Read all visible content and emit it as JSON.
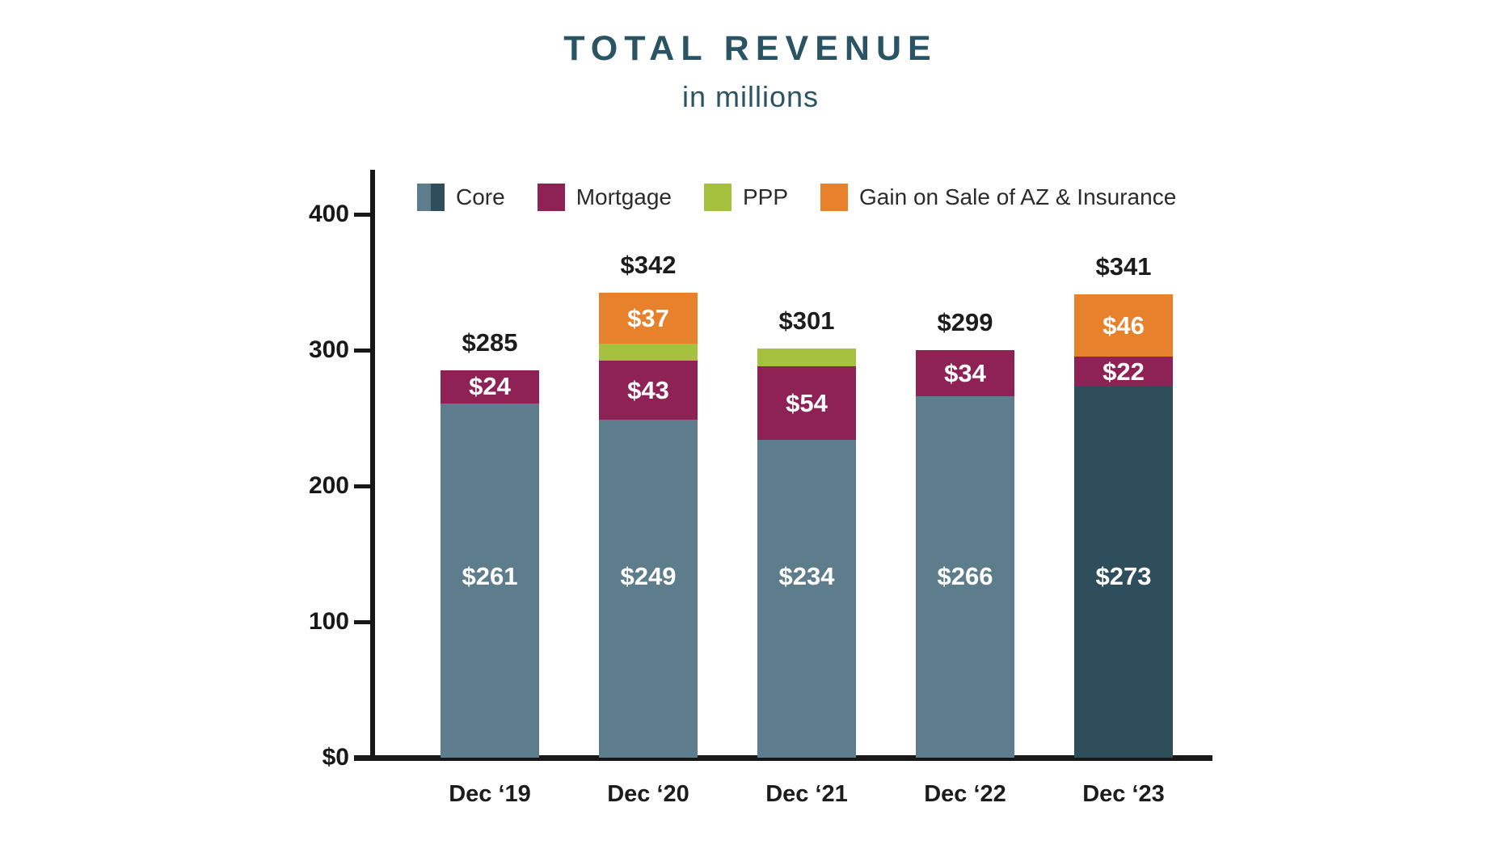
{
  "header": {
    "title": "TOTAL REVENUE",
    "subtitle": "in millions"
  },
  "colors": {
    "title_teal": "#2a5363",
    "core_light": "#5e7d8c",
    "core_dark": "#2e4e5c",
    "mortgage": "#8e2255",
    "ppp": "#a6c13d",
    "gain": "#e8812c",
    "axis": "#181818",
    "label_dark": "#1c1c1c",
    "label_light": "#ffffff"
  },
  "legend": {
    "items": [
      {
        "label": "Core",
        "swatch_colors": [
          "#5e7d8c",
          "#2e4e5c"
        ]
      },
      {
        "label": "Mortgage",
        "swatch_colors": [
          "#8e2255"
        ]
      },
      {
        "label": "PPP",
        "swatch_colors": [
          "#a6c13d"
        ]
      },
      {
        "label": "Gain on Sale of AZ & Insurance",
        "swatch_colors": [
          "#e8812c"
        ]
      }
    ]
  },
  "y_axis": {
    "ticks": [
      {
        "label": "400",
        "value": 400
      },
      {
        "label": "300",
        "value": 300
      },
      {
        "label": "200",
        "value": 200
      },
      {
        "label": "100",
        "value": 100
      },
      {
        "label": "$0",
        "value": 0
      }
    ]
  },
  "chart_data": {
    "type": "bar",
    "stacked": true,
    "title": "TOTAL REVENUE",
    "subtitle": "in millions",
    "grid": false,
    "legend_position": "top",
    "ylim": [
      0,
      430
    ],
    "categories": [
      "Dec ‘19",
      "Dec ‘20",
      "Dec ‘21",
      "Dec ‘22",
      "Dec ‘23"
    ],
    "series": [
      {
        "name": "Core",
        "values": [
          261,
          249,
          234,
          266,
          273
        ]
      },
      {
        "name": "Mortgage",
        "values": [
          24,
          43,
          54,
          34,
          22
        ]
      },
      {
        "name": "PPP",
        "values": [
          0,
          13,
          13,
          0,
          0
        ]
      },
      {
        "name": "Gain on Sale of AZ & Insurance",
        "values": [
          0,
          37,
          0,
          0,
          46
        ]
      }
    ],
    "totals": [
      285,
      342,
      301,
      299,
      341
    ],
    "bars": [
      {
        "category": "Dec ‘19",
        "total_label": "$285",
        "segments": [
          {
            "series": "Core",
            "value": 261,
            "label": "$261",
            "color": "#5e7d8c"
          },
          {
            "series": "Mortgage",
            "value": 24,
            "label": "$24",
            "color": "#8e2255"
          }
        ]
      },
      {
        "category": "Dec ‘20",
        "total_label": "$342",
        "segments": [
          {
            "series": "Core",
            "value": 249,
            "label": "$249",
            "color": "#5e7d8c"
          },
          {
            "series": "Mortgage",
            "value": 43,
            "label": "$43",
            "color": "#8e2255"
          },
          {
            "series": "PPP",
            "value": 13,
            "label": "",
            "color": "#a6c13d"
          },
          {
            "series": "Gain on Sale of AZ & Insurance",
            "value": 37,
            "label": "$37",
            "color": "#e8812c"
          }
        ]
      },
      {
        "category": "Dec ‘21",
        "total_label": "$301",
        "segments": [
          {
            "series": "Core",
            "value": 234,
            "label": "$234",
            "color": "#5e7d8c"
          },
          {
            "series": "Mortgage",
            "value": 54,
            "label": "$54",
            "color": "#8e2255"
          },
          {
            "series": "PPP",
            "value": 13,
            "label": "",
            "color": "#a6c13d"
          }
        ]
      },
      {
        "category": "Dec ‘22",
        "total_label": "$299",
        "segments": [
          {
            "series": "Core",
            "value": 266,
            "label": "$266",
            "color": "#5e7d8c"
          },
          {
            "series": "Mortgage",
            "value": 34,
            "label": "$34",
            "color": "#8e2255"
          }
        ]
      },
      {
        "category": "Dec ‘23",
        "total_label": "$341",
        "segments": [
          {
            "series": "Core",
            "value": 273,
            "label": "$273",
            "color": "#2e4e5c"
          },
          {
            "series": "Mortgage",
            "value": 22,
            "label": "$22",
            "color": "#8e2255"
          },
          {
            "series": "Gain on Sale of AZ & Insurance",
            "value": 46,
            "label": "$46",
            "color": "#e8812c"
          }
        ]
      }
    ]
  }
}
